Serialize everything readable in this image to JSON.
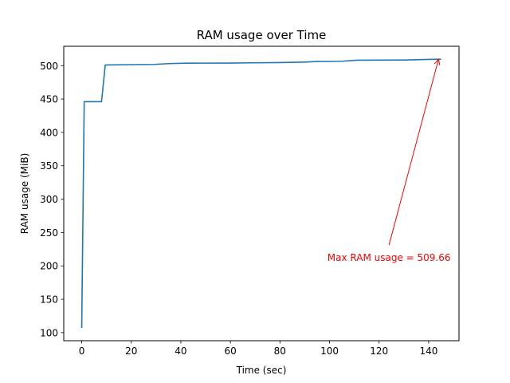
{
  "chart_data": {
    "type": "line",
    "title": "RAM usage over Time",
    "xlabel": "Time (sec)",
    "ylabel": "RAM usage (MiB)",
    "xlim": [
      -7.25,
      152.25
    ],
    "ylim": [
      87.9,
      529.0
    ],
    "x_ticks": [
      0,
      20,
      40,
      60,
      80,
      100,
      120,
      140
    ],
    "y_ticks": [
      100,
      150,
      200,
      250,
      300,
      350,
      400,
      450,
      500
    ],
    "grid": false,
    "series": [
      {
        "color": "#1f77b4",
        "x": [
          0,
          1,
          8,
          9.5,
          20,
          29,
          35,
          42,
          60,
          68,
          80,
          90,
          95,
          100,
          105,
          111,
          130,
          140,
          145
        ],
        "y": [
          107,
          446,
          446,
          501,
          501.5,
          501.8,
          503,
          503.7,
          503.8,
          504.2,
          504.6,
          505.3,
          506.2,
          506.3,
          506.6,
          508.2,
          508.4,
          509.3,
          509.66
        ]
      }
    ],
    "annotations": [
      {
        "text": "Max RAM usage = 509.66",
        "color": "#ff0000",
        "point": [
          144,
          509.66
        ],
        "text_anchor_point": [
          124,
          212
        ]
      }
    ]
  }
}
